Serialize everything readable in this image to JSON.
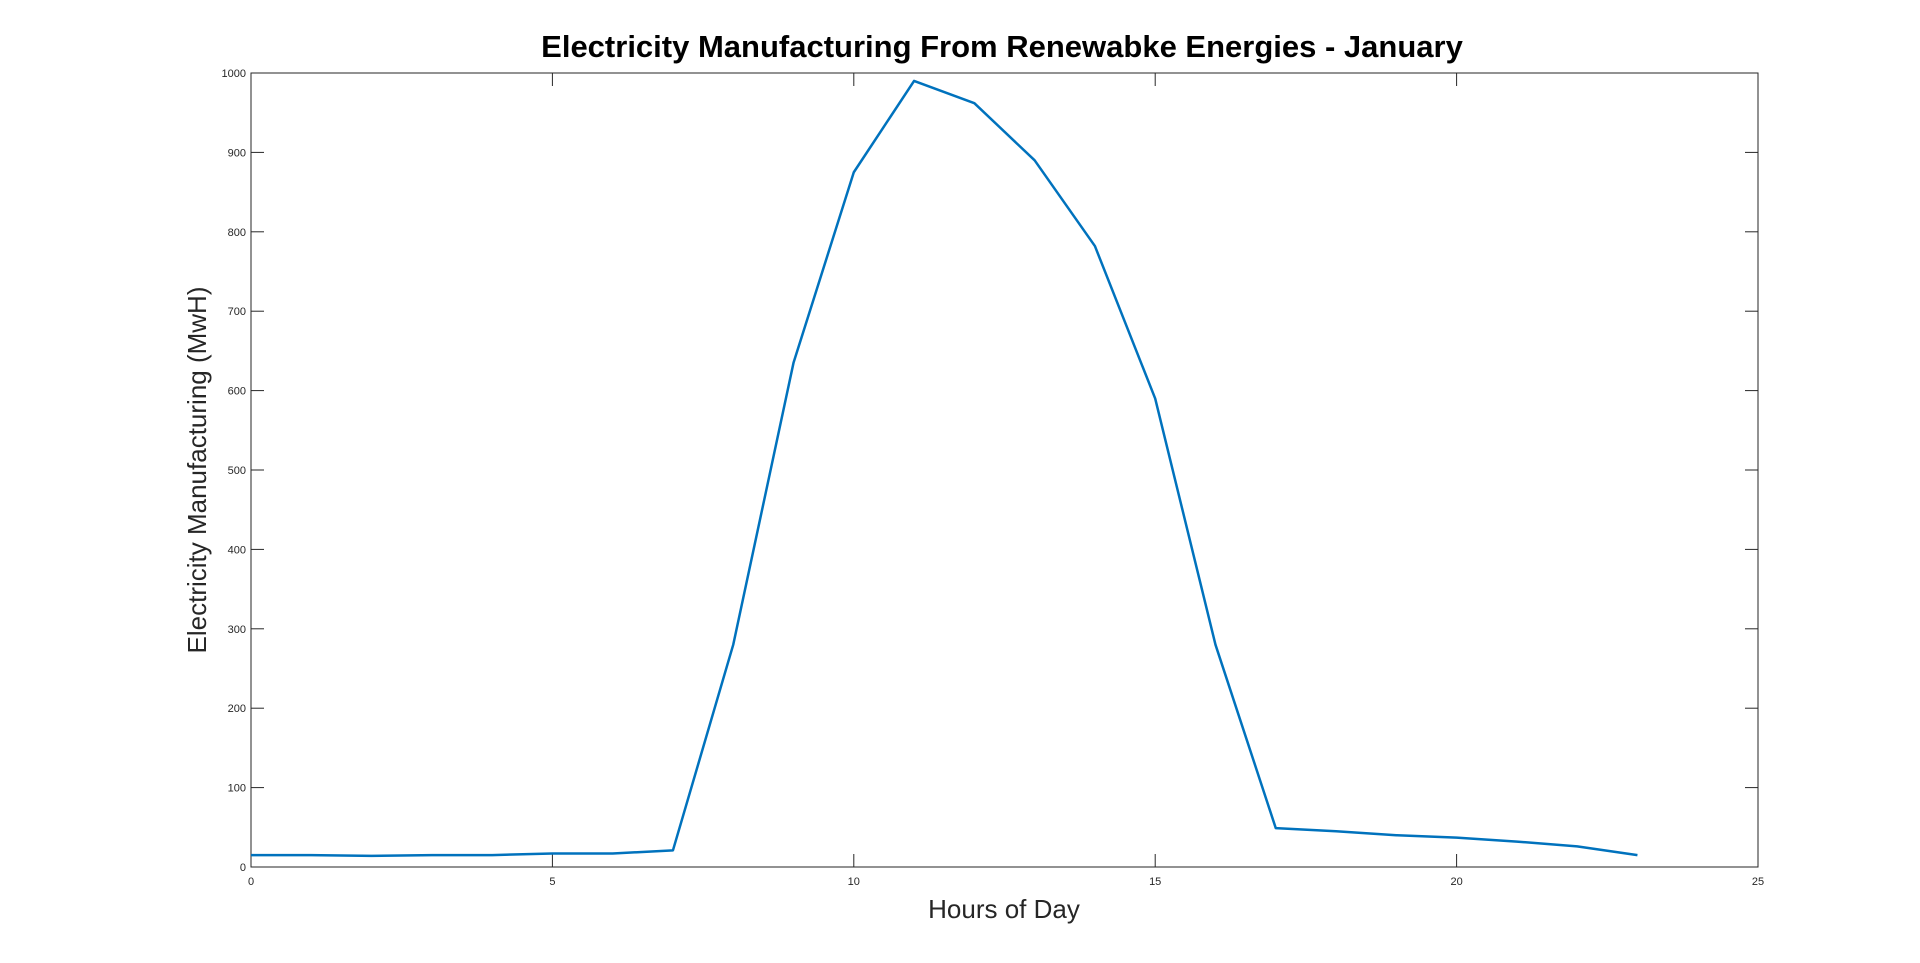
{
  "chart_data": {
    "type": "line",
    "title": "Electricity Manufacturing From Renewabke Energies - January",
    "xlabel": "Hours of Day",
    "ylabel": "Electricity Manufacturing (MwH)",
    "xlim": [
      0,
      25
    ],
    "ylim": [
      0,
      1000
    ],
    "xticks": [
      0,
      5,
      10,
      15,
      20,
      25
    ],
    "yticks": [
      0,
      100,
      200,
      300,
      400,
      500,
      600,
      700,
      800,
      900,
      1000
    ],
    "grid": false,
    "legend": "none",
    "series": [
      {
        "color": "#0072BD",
        "x": [
          0,
          1,
          2,
          3,
          4,
          5,
          6,
          7,
          8,
          9,
          10,
          11,
          12,
          13,
          14,
          15,
          16,
          17,
          18,
          19,
          20,
          21,
          22,
          23
        ],
        "y": [
          15,
          15,
          14,
          15,
          15,
          17,
          17,
          21,
          280,
          635,
          875,
          990,
          962,
          890,
          782,
          590,
          280,
          49,
          45,
          40,
          37,
          32,
          26,
          15
        ]
      }
    ]
  }
}
